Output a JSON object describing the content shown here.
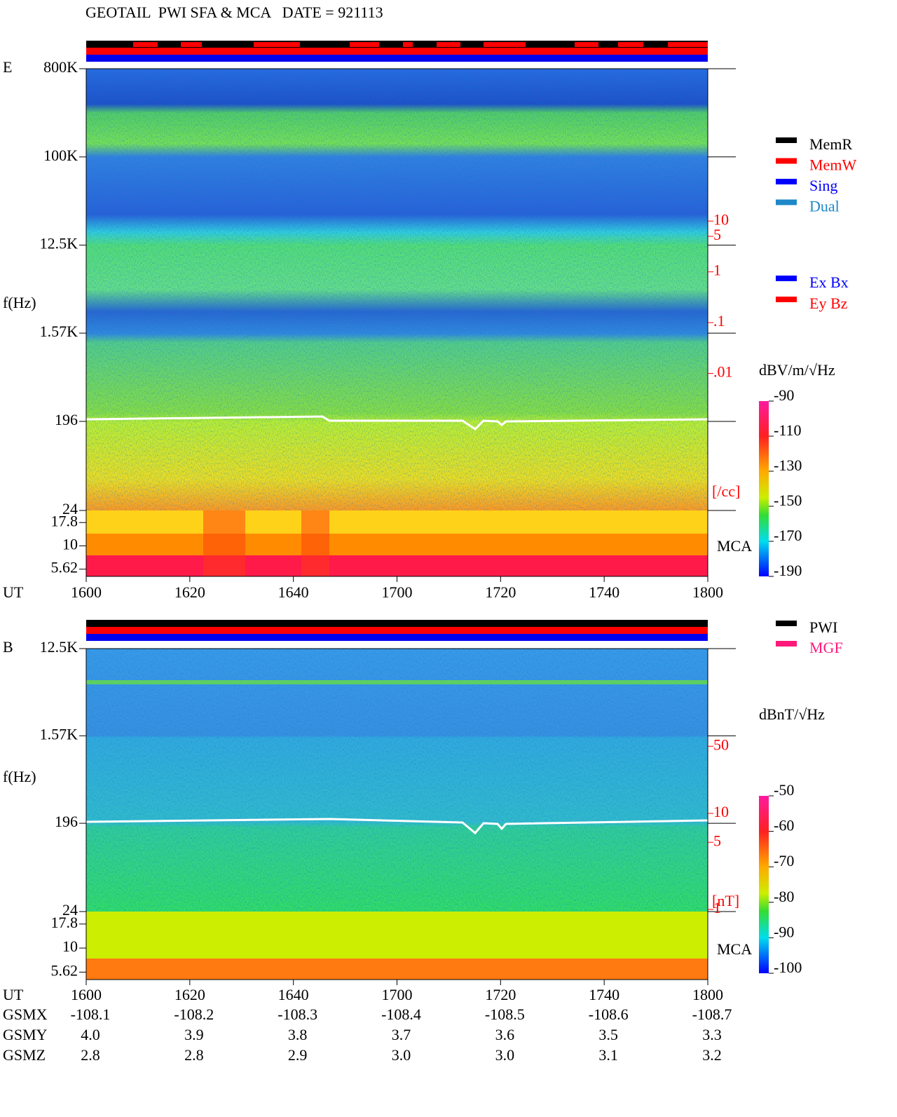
{
  "title": "GEOTAIL  PWI SFA & MCA   DATE = 921113",
  "chart_data": [
    {
      "type": "spectrogram",
      "panel_label": "E",
      "ylabel": "f(Hz)",
      "xlabel": "UT",
      "log_y": true,
      "ylim": [
        24,
        800000
      ],
      "yticks": [
        {
          "value": 800000,
          "label": "800K"
        },
        {
          "value": 100000,
          "label": "100K"
        },
        {
          "value": 12500,
          "label": "12.5K"
        },
        {
          "value": 1570,
          "label": "1.57K"
        },
        196,
        24
      ],
      "mca_label": "MCA",
      "mca_ylim": [
        4.7,
        24
      ],
      "mca_yticks": [
        17.8,
        10,
        5.62
      ],
      "y2lim": [
        2e-05,
        10000
      ],
      "y2ticks": [
        10,
        5,
        1,
        {
          "value": 0.1,
          "label": ".1"
        },
        {
          "value": 0.01,
          "label": ".01"
        }
      ],
      "y2label": "[/cc]",
      "y2color": "#ff0000",
      "xlim": [
        0,
        120
      ],
      "xticks": [
        {
          "value": 0,
          "label": "1600"
        },
        {
          "value": 20,
          "label": "1620"
        },
        {
          "value": 40,
          "label": "1640"
        },
        {
          "value": 60,
          "label": "1700"
        },
        {
          "value": 80,
          "label": "1720"
        },
        {
          "value": 100,
          "label": "1740"
        },
        {
          "value": 120,
          "label": "1800"
        }
      ],
      "colorbar": {
        "label": "dBV/m/√Hz",
        "lim": [
          -190,
          -90
        ],
        "ticks": [
          -90,
          -110,
          -130,
          -150,
          -170,
          -190
        ]
      },
      "legend": [
        [
          {
            "name": "MemR",
            "color": "#000000"
          },
          {
            "name": "MemW",
            "color": "#ff0000"
          },
          {
            "name": "Sing",
            "color": "#0000ff"
          },
          {
            "name": "Dual",
            "color": "#1e88c8"
          }
        ],
        [
          {
            "name": "Ex Bx",
            "color": "#0000ff"
          },
          {
            "name": "Ey Bz",
            "color": "#ff0000"
          }
        ]
      ]
    },
    {
      "type": "spectrogram",
      "panel_label": "B",
      "ylabel": "f(Hz)",
      "xlabel": "UT",
      "log_y": true,
      "ylim": [
        24,
        12500
      ],
      "yticks": [
        {
          "value": 12500,
          "label": "12.5K"
        },
        {
          "value": 1570,
          "label": "1.57K"
        },
        196,
        24
      ],
      "mca_label": "MCA",
      "mca_ylim": [
        4.7,
        24
      ],
      "mca_yticks": [
        17.8,
        10,
        5.62
      ],
      "y2lim": [
        0.95,
        520
      ],
      "y2ticks": [
        50,
        10,
        5,
        1
      ],
      "y2label": "[nT]",
      "y2color": "#ff0000",
      "xlim": [
        0,
        120
      ],
      "xticks": [
        {
          "value": 0,
          "label": "1600"
        },
        {
          "value": 20,
          "label": "1620"
        },
        {
          "value": 40,
          "label": "1640"
        },
        {
          "value": 60,
          "label": "1700"
        },
        {
          "value": 80,
          "label": "1720"
        },
        {
          "value": 100,
          "label": "1740"
        },
        {
          "value": 120,
          "label": "1800"
        }
      ],
      "colorbar": {
        "label": "dBnT/√Hz",
        "lim": [
          -100,
          -50
        ],
        "ticks": [
          -50,
          -60,
          -70,
          -80,
          -90,
          -100
        ]
      },
      "legend": [
        [
          {
            "name": "PWI",
            "color": "#000000"
          },
          {
            "name": "MGF",
            "color": "#ff1a7a"
          }
        ]
      ]
    }
  ],
  "orbit": {
    "rows": [
      {
        "label": "GSMX",
        "values": [
          "-108.1",
          "-108.2",
          "-108.3",
          "-108.4",
          "-108.5",
          "-108.6",
          "-108.7"
        ]
      },
      {
        "label": "GSMY",
        "values": [
          "4.0",
          "3.9",
          "3.8",
          "3.7",
          "3.6",
          "3.5",
          "3.3"
        ]
      },
      {
        "label": "GSMZ",
        "values": [
          "2.8",
          "2.8",
          "2.9",
          "3.0",
          "3.0",
          "3.1",
          "3.2"
        ]
      }
    ]
  }
}
